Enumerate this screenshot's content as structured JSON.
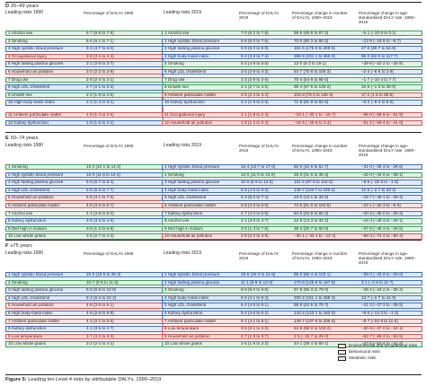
{
  "headers": {
    "leading_1990": "Leading risks 1990",
    "pct_1990": "Percentage of DALYs 1990",
    "leading_2019": "Leading risks 2019",
    "pct_2019": "Percentage of DALYs 2019",
    "change_number": "Percentage change in number of DALYs, 1990–2019",
    "change_rate": "Percentage change in age-standardised DALY rate, 1990–2019"
  },
  "sections": [
    {
      "letter": "D",
      "title": "25–49 years",
      "left": [
        {
          "label": "1 Alcohol use",
          "value": "6·7 (5·9 to 7·5)",
          "cat": "beh"
        },
        {
          "label": "2 Smoking",
          "value": "6·6 (6·1 to 7·1)",
          "cat": "beh"
        },
        {
          "label": "3 High systolic blood pressure",
          "value": "5·4 (4·7 to 6·0)",
          "cat": "met"
        },
        {
          "label": "4 Occupational injury",
          "value": "3·9 (3·4 to 4·3)",
          "cat": "env"
        },
        {
          "label": "5 High fasting plasma glucose",
          "value": "3·1 (2·6 to 3·7)",
          "cat": "met"
        },
        {
          "label": "6 Household air pollution",
          "value": "3·0 (2·2 to 3·9)",
          "cat": "env"
        },
        {
          "label": "7 Drug use",
          "value": "2·8 (2·4 to 3·1)",
          "cat": "beh"
        },
        {
          "label": "8 High LDL cholesterol",
          "value": "2·7 (2·1 to 3·3)",
          "cat": "met"
        },
        {
          "label": "9 Unsafe sex",
          "value": "2·2 (1·9 to 2·5)",
          "cat": "beh"
        },
        {
          "label": "10 High body-mass index",
          "value": "2·1 (1·3 to 3·1)",
          "cat": "met"
        },
        {
          "label": "11 Ambient particulate matter",
          "value": "1·9 (1·4 to 2·5)",
          "cat": "env"
        },
        {
          "label": "12 Kidney dysfunction",
          "value": "1·8 (1·5 to 2·2)",
          "cat": "met"
        }
      ],
      "right": [
        {
          "label": "1 Alcohol use",
          "pct": "7·0 (6·2 to 7·8)",
          "num": "56·5 (45·6 to 67·2)",
          "rate": "−5·1 (−10·5 to 0·1)",
          "cat": "beh"
        },
        {
          "label": "2 High systolic blood pressure",
          "pct": "6·8 (6·0 to 7·6)",
          "num": "70·0 (60·3 to 80·2)",
          "rate": "−12·8 (−16·9 to −8·7)",
          "cat": "met"
        },
        {
          "label": "3 High fasting plasma glucose",
          "pct": "5·9 (5·0 to 6·9)",
          "num": "191·6 (175·0 to 209·5)",
          "rate": "47·0 (39·7 to 54·6)",
          "cat": "met"
        },
        {
          "label": "4 High body-mass index",
          "pct": "5·4 (3·6 to 7·4)",
          "num": "288·5 (231·1 to 365·0)",
          "rate": "85·2 (62·0 to 117·7)",
          "cat": "met"
        },
        {
          "label": "5 Smoking",
          "pct": "5·3 (4·9 to 5·8)",
          "num": "12·0 (5·2 to 19·1)",
          "rate": "−38·6 (−42·2 to −34·8)",
          "cat": "beh"
        },
        {
          "label": "6 High LDL cholesterol",
          "pct": "3·6 (2·9 to 4·3)",
          "num": "84·7 (70·8 to 100·3)",
          "rate": "−2·4 (−8·6 to 3·9)",
          "cat": "met"
        },
        {
          "label": "7 Drug use",
          "pct": "3·3 (2·9 to 3·8)",
          "num": "70·4 (54·9 to 86·5)",
          "rate": "−1·7 (−10·4 to 7·7)",
          "cat": "beh"
        },
        {
          "label": "8 Unsafe sex",
          "pct": "3·1 (2·7 to 3·5)",
          "num": "99·4 (67·6 to 130·2)",
          "rate": "16·5 (−1·3 to 36·0)",
          "cat": "beh"
        },
        {
          "label": "9 Ambient particulate matter",
          "pct": "2·9 (2·4 to 3·4)",
          "num": "103·8 (79·2 to 136·4)",
          "rate": "17·2 (1·5 to 38·5)",
          "cat": "env"
        },
        {
          "label": "10 Kidney dysfunction",
          "pct": "2·2 (1·9 to 2·6)",
          "num": "71·8 (61·8 to 82·6)",
          "rate": "−0·2 (−6·4 to 6·5)",
          "cat": "met"
        },
        {
          "label": "11 Occupational injury",
          "pct": "2·1 (1·8 to 2·4)",
          "num": "−23·1 (−30·1 to −15·7)",
          "rate": "−56·0 (−59·9 to −51·9)",
          "cat": "env"
        },
        {
          "label": "12 Household air pollution",
          "pct": "1·8 (1·2 to 2·4)",
          "num": "−15·5 (−29·6 to 2·4)",
          "rate": "−51·2 (−59·4 to −41·0)",
          "cat": "env"
        }
      ]
    },
    {
      "letter": "E",
      "title": "50–74 years",
      "left": [
        {
          "label": "1 Smoking",
          "value": "13·2 (12·1 to 14·2)",
          "cat": "beh"
        },
        {
          "label": "2 High systolic blood pressure",
          "value": "13·0 (11·6 to 14·4)",
          "cat": "met"
        },
        {
          "label": "3 High fasting plasma glucose",
          "value": "6·9 (5·7 to 8·3)",
          "cat": "met"
        },
        {
          "label": "4 High LDL cholesterol",
          "value": "6·5 (5·3 to 7·7)",
          "cat": "met"
        },
        {
          "label": "5 Household air pollution",
          "value": "5·5 (4·1 to 7·0)",
          "cat": "env"
        },
        {
          "label": "6 Ambient particulate matter",
          "value": "4·5 (3·3 to 5·7)",
          "cat": "env"
        },
        {
          "label": "7 Alcohol use",
          "value": "4·4 (3·8 to 5·0)",
          "cat": "beh"
        },
        {
          "label": "8 Kidney dysfunction",
          "value": "3·9 (3·3 to 4·6)",
          "cat": "met"
        },
        {
          "label": "9 Diet high in sodium",
          "value": "3·6 (1·2 to 6·8)",
          "cat": "beh"
        },
        {
          "label": "10 Low whole grains",
          "value": "3·5 (2·7 to 4·3)",
          "cat": "beh"
        }
      ],
      "right": [
        {
          "label": "1 High systolic blood pressure",
          "pct": "15·4 (13·7 to 17·0)",
          "num": "52·0 (42·6 to 61·7)",
          "rate": "−31·0 (−35·3 to −26·6)",
          "cat": "met"
        },
        {
          "label": "2 Smoking",
          "pct": "12·0 (11·0 to 13·0)",
          "num": "28·3 (21·6 to 35·3)",
          "rate": "−42·0 (−44·9 to −39·1)",
          "cat": "beh"
        },
        {
          "label": "3 High fasting plasma glucose",
          "pct": "10·6 (8·9 to 12·5)",
          "num": "101·5 (87·6 to 116·2)",
          "rate": "−8·6 (−15·3 to −1·8)",
          "cat": "met"
        },
        {
          "label": "4 High body-mass index",
          "pct": "6·8 (4·5 to 9·3)",
          "num": "149·7 (119·7 to 189·4)",
          "rate": "12·5 (−2·7 to 33·2)",
          "cat": "met"
        },
        {
          "label": "5 High LDL cholesterol",
          "pct": "6·3 (5·2 to 7·4)",
          "num": "23·0 (13·1 to 33·2)",
          "rate": "−44·7 (−49·1 to −40·4)",
          "cat": "met"
        },
        {
          "label": "6 Ambient particulate matter",
          "pct": "5·8 (4·8 to 6·9)",
          "num": "74·5 (51·6 to 104·5)",
          "rate": "−22·1 (−32·3 to −8·0)",
          "cat": "env"
        },
        {
          "label": "7 Kidney dysfunction",
          "pct": "4·7 (4·0 to 5·5)",
          "num": "54·5 (43·9 to 65·2)",
          "rate": "−30·3 (−35·0 to −25·3)",
          "cat": "met"
        },
        {
          "label": "8 Alcohol use",
          "pct": "4·1 (3·6 to 4·7)",
          "num": "22·9 (14·3 to 32·2)",
          "rate": "−44·3 (−48·3 to −40·1)",
          "cat": "beh"
        },
        {
          "label": "9 Diet high in sodium",
          "pct": "3·8 (1·3 to 7·5)",
          "num": "38·3 (20·7 to 60·0)",
          "rate": "−37·5 (−46·3 to −29·5)",
          "cat": "beh"
        },
        {
          "label": "10 Household air pollution",
          "pct": "2·9 (2·0 to 3·9)",
          "num": "−30·1 (−43·1 to −12·4)",
          "rate": "−68·3 (−74·2 to −60·4)",
          "cat": "env"
        }
      ]
    },
    {
      "letter": "F",
      "title": "≥75 years",
      "left": [
        {
          "label": "1 High systolic blood pressure",
          "value": "22·0 (18·5 to 25·3)",
          "cat": "met"
        },
        {
          "label": "2 Smoking",
          "value": "10·7 (9·8 to 11·6)",
          "cat": "beh"
        },
        {
          "label": "3 High fasting plasma glucose",
          "value": "8·5 (6·6 to 10·8)",
          "cat": "met"
        },
        {
          "label": "4 High LDL cholesterol",
          "value": "8·2 (6·4 to 10·2)",
          "cat": "met"
        },
        {
          "label": "5 Household air pollution",
          "value": "4·8 (3·6 to 6·1)",
          "cat": "env"
        },
        {
          "label": "6 High body-mass index",
          "value": "4·5 (2·6 to 6·9)",
          "cat": "met"
        },
        {
          "label": "7 Ambient particulate matter",
          "value": "4·2 (3·1 to 5·5)",
          "cat": "env"
        },
        {
          "label": "8 Kidney dysfunction",
          "value": "4·1 (3·5 to 4·7)",
          "cat": "met"
        },
        {
          "label": "9 Low temperature",
          "value": "3·7 (3·2 to 4·3)",
          "cat": "env"
        },
        {
          "label": "10 Low whole grains",
          "value": "3·2 (2·4 to 4·1)",
          "cat": "beh"
        }
      ],
      "right": [
        {
          "label": "1 High systolic blood pressure",
          "pct": "19·6 (16·3 to 22·6)",
          "num": "85·3 (66·4 to 103·1)",
          "rate": "−38·0 (−42·9 to −33·0)",
          "cat": "met"
        },
        {
          "label": "2 High fasting plasma glucose",
          "pct": "11·1 (8·9 to 13·6)",
          "num": "170·8 (145·6 to 197·8)",
          "rate": "3·1 (−4·8 to 11·7)",
          "cat": "met"
        },
        {
          "label": "3 Smoking",
          "pct": "8·8 (8·0 to 9·6)",
          "num": "67·8 (56·3 to 79·0)",
          "rate": "−39·2 (−43·2 to −35·2)",
          "cat": "beh"
        },
        {
          "label": "4 High body-mass index",
          "pct": "6·5 (4·1 to 9·3)",
          "num": "200·2 (161·1 to 268·3)",
          "rate": "13·7 (−2·7 to 41·0)",
          "cat": "met"
        },
        {
          "label": "5 High LDL cholesterol",
          "pct": "6·4 (4·9 to 8·1)",
          "num": "58·9 (42·5 to 75·7)",
          "rate": "−41·3 (−47·3 to −35·5)",
          "cat": "met"
        },
        {
          "label": "6 Kidney dysfunction",
          "pct": "5·4 (4·6 to 6·2)",
          "num": "143·2 (123·1 to 163·0)",
          "rate": "−8·0 (−14·3 to −1·3)",
          "cat": "met"
        },
        {
          "label": "7 Ambient particulate matter",
          "pct": "5·1 (4·1 to 6·1)",
          "num": "148·7 (107·6 to 205·5)",
          "rate": "−8·7 (−22·8 to 11·0)",
          "cat": "env"
        },
        {
          "label": "8 Low temperature",
          "pct": "3·5 (3·1 to 4·0)",
          "num": "84·8 (68·0 to 103·2)",
          "rate": "−30·9 (−37·0 to −24·1)",
          "cat": "env"
        },
        {
          "label": "9 Household air pollution",
          "pct": "2·7 (1·9 to 3·7)",
          "num": "2·5 (−15·7 to 29·0)",
          "rate": "−62·7 (−69·3 to −53·5)",
          "cat": "env"
        },
        {
          "label": "10 Low whole grains",
          "pct": "2·6 (1·9 to 3·3)",
          "num": "44·1 (28·4 to 60·1)",
          "rate": "−47·0 (−52·4 to −41·3)",
          "cat": "beh"
        }
      ]
    }
  ],
  "legend": [
    {
      "label": "Environmental and occupational risks",
      "cat": "env"
    },
    {
      "label": "Behavioural risks",
      "cat": "beh"
    },
    {
      "label": "Metabolic risks",
      "cat": "met"
    }
  ],
  "caption": {
    "figure": "Figure 5:",
    "text": "Leading ten Level 4 risks by attributable DALYs, 1990–2019"
  },
  "colors": {
    "environmental": "#d9534f",
    "behavioural": "#3aa35b",
    "metabolic": "#3a6fc2"
  }
}
